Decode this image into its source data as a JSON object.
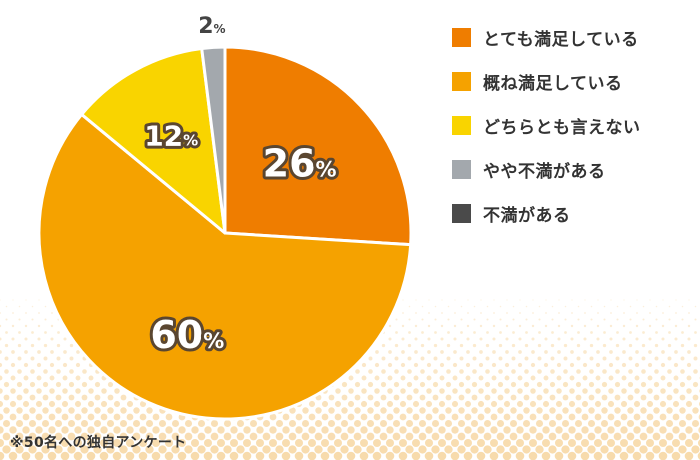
{
  "chart_data": {
    "type": "pie",
    "start": "top",
    "direction": "clockwise",
    "slices": [
      {
        "label": "とても満足している",
        "value": 26,
        "color": "#ef7d00"
      },
      {
        "label": "概ね満足している",
        "value": 60,
        "color": "#f5a200"
      },
      {
        "label": "どちらとも言えない",
        "value": 12,
        "color": "#f9d400"
      },
      {
        "label": "やや不満がある",
        "value": 2,
        "color": "#a3a8ad"
      },
      {
        "label": "不満がある",
        "value": 0,
        "color": "#4a4a4a"
      }
    ],
    "value_suffix": "%",
    "legend_placement": "right"
  },
  "footnote": "※50名への独自アンケート"
}
